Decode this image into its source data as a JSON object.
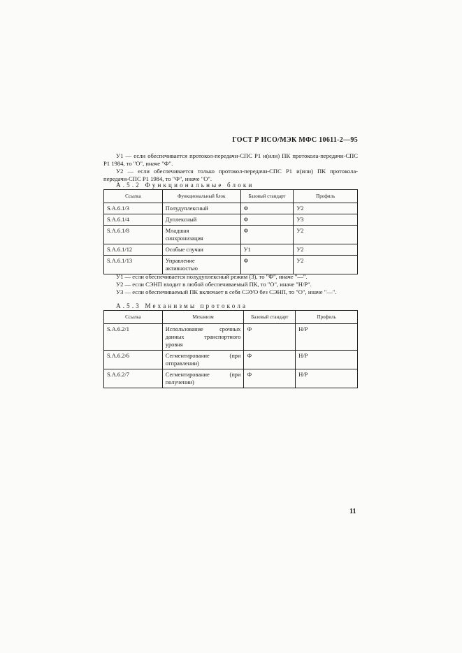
{
  "header": "ГОСТ Р ИСО/МЭК МФС 10611-2—95",
  "notes1": [
    "У1 — если обеспечивается протокол-передачи-СПС Р1 и(или) ПК протокола-передачи-СПС Р1 1984, то \"О\", иначе \"Ф\".",
    "У2 — если обеспечивается только протокол-передачи-СПС Р1 и(или) ПК протокола-передачи-СПС Р1 1984, то \"Ф\", иначе \"О\"."
  ],
  "section1": "А.5.2 Функциональные блоки",
  "table1": {
    "headers": [
      "Ссылка",
      "Функциональный блок",
      "Базовый стандарт",
      "Профиль"
    ],
    "rows": [
      [
        "S.A.6.1/3",
        "Полудуплексный",
        "Ф",
        "У2"
      ],
      [
        "S.A.6.1/4",
        "Дуплексный",
        "Ф",
        "У3"
      ],
      [
        "S.A.6.1/8",
        "Младшая синхронизация",
        "Ф",
        "У2"
      ],
      [
        "S.A.6.1/12",
        "Особые случаи",
        "У1",
        "У2"
      ],
      [
        "S.A.6.1/13",
        "Управление активностью",
        "Ф",
        "У2"
      ]
    ]
  },
  "notes2": [
    "У1 — если обеспечивается полудуплексный режим (3), то \"Ф\", иначе \"—\".",
    "У2 — если СЭНП входит в любой обеспечиваемый ПК, то \"О\", иначе \"Н/Р\".",
    "У3 — если обеспечиваемый ПК включает в себя СЭУО без СЭНП, то \"О\", иначе \"—\"."
  ],
  "section2": "А.5.3 Механизмы протокола",
  "table2": {
    "headers": [
      "Ссылка",
      "Механизм",
      "Базовый стандарт",
      "Профиль"
    ],
    "rows": [
      [
        "S.A.6.2/1",
        "Использование срочных данных транспортного уровня",
        "Ф",
        "Н/Р"
      ],
      [
        "S.A.6.2/6",
        "Сегментирование (при отправлении)",
        "Ф",
        "Н/Р"
      ],
      [
        "S.A.6.2/7",
        "Сегментирование (при получении)",
        "Ф",
        "Н/Р"
      ]
    ]
  },
  "page_number": "11"
}
